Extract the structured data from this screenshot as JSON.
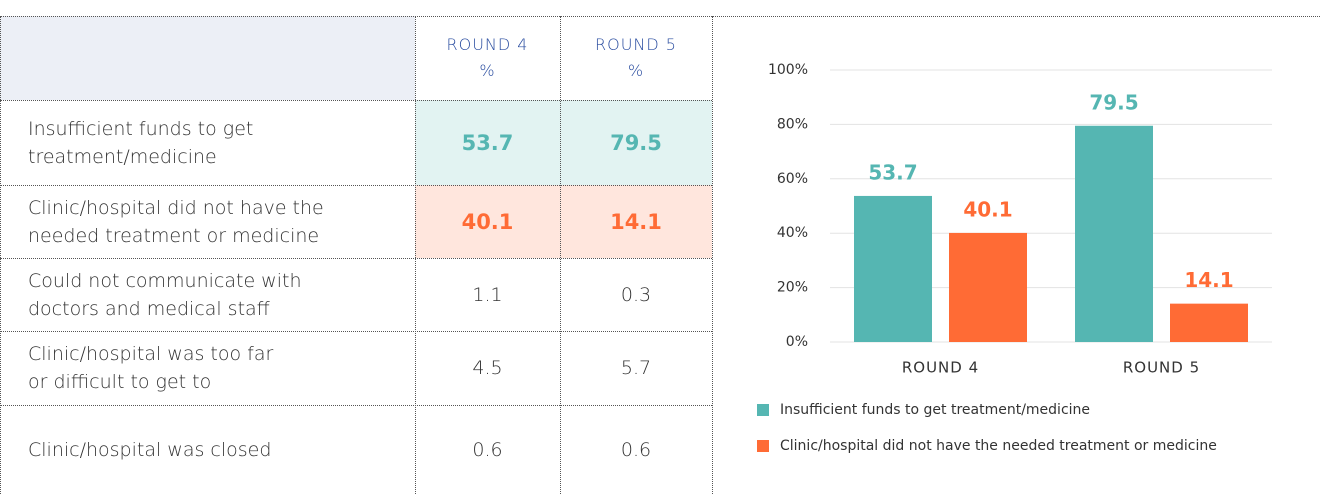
{
  "table": {
    "columns": [
      [
        "ROUND 4",
        "%"
      ],
      [
        "ROUND 5",
        "%"
      ]
    ],
    "rows": [
      {
        "label": [
          "Insufficient funds to get",
          "treatment/medicine"
        ],
        "values": [
          53.7,
          79.5
        ],
        "color": "#55b6b2"
      },
      {
        "label": [
          "Clinic/hospital did not have the",
          "needed treatment or medicine"
        ],
        "values": [
          40.1,
          14.1
        ],
        "color": "#ff6b35"
      },
      {
        "label": [
          "Could not communicate with",
          "doctors and medical staff"
        ],
        "values": [
          1.1,
          0.3
        ]
      },
      {
        "label": [
          "Clinic/hospital was too far",
          "or difficult to get to"
        ],
        "values": [
          4.5,
          5.7
        ]
      },
      {
        "label": [
          "Clinic/hospital was closed"
        ],
        "values": [
          0.6,
          0.6
        ]
      }
    ]
  },
  "chart_data": {
    "type": "bar",
    "categories": [
      "ROUND 4",
      "ROUND 5"
    ],
    "series": [
      {
        "name": "Insufficient funds to get treatment/medicine",
        "color": "#55b6b2",
        "values": [
          53.7,
          79.5
        ]
      },
      {
        "name": "Clinic/hospital did not have the needed treatment or medicine",
        "color": "#ff6b35",
        "values": [
          40.1,
          14.1
        ]
      }
    ],
    "ylim": [
      0,
      100
    ],
    "yticks": [
      {
        "value": 0,
        "label": "0%"
      },
      {
        "value": 20,
        "label": "20%"
      },
      {
        "value": 40,
        "label": "40%"
      },
      {
        "value": 60,
        "label": "60%"
      },
      {
        "value": 80,
        "label": "80%"
      },
      {
        "value": 100,
        "label": "100%"
      }
    ],
    "grid": true,
    "legend": "bottom"
  }
}
